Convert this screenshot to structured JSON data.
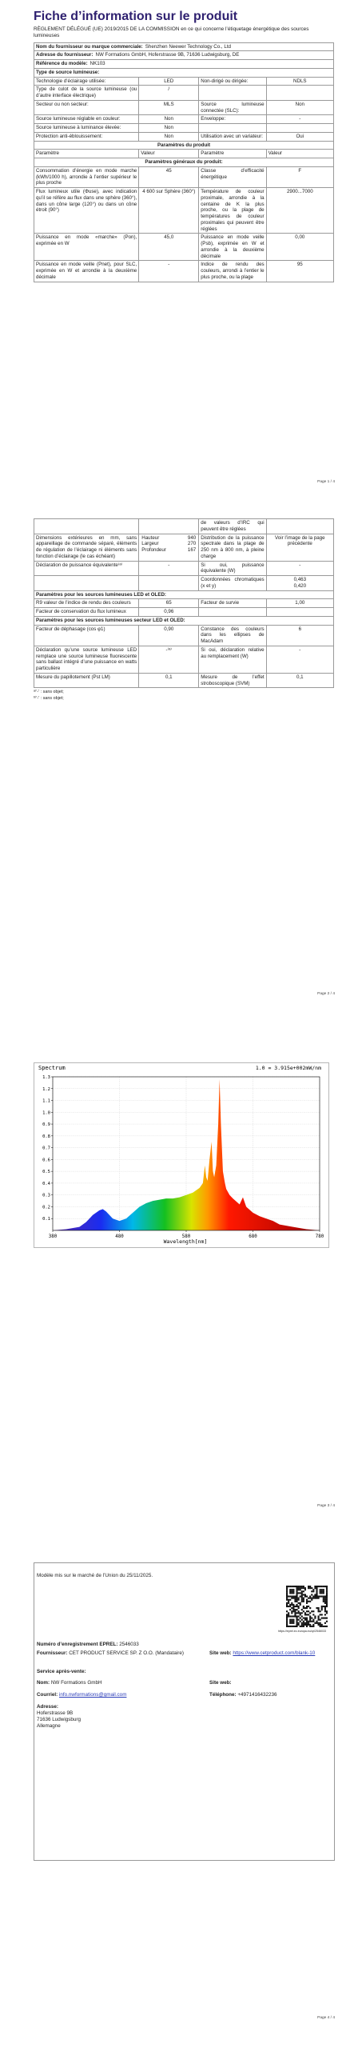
{
  "page1": {
    "title": "Fiche d’information sur le produit",
    "regulation": "RÈGLEMENT DÉLÉGUÉ (UE) 2019/2015 DE LA COMMISSION en ce qui concerne l’étiquetage énergétique des sources lumineuses",
    "blocks": [
      {
        "label": "Nom du fournisseur ou marque commerciale:",
        "value": "Shenzhen Neewer Technology Co., Ltd"
      },
      {
        "label": "Adresse du fournisseur:",
        "value": "NW Formations GmbH, Hoferstrasse 9B, 71636 Ludwigsburg, DE"
      },
      {
        "label": "Référence du modèle:",
        "value": "NK103"
      },
      {
        "heading": "Type de source lumineuse:"
      },
      {
        "cells": [
          "Technologie d’éclairage utilisée:",
          "LED",
          "Non-dirigé ou dirigée:",
          "NDLS"
        ]
      },
      {
        "cells": [
          "Type de culot de la source lumineuse (ou d’autre interface électrique)",
          "/",
          null,
          null
        ]
      },
      {
        "cells": [
          "Secteur ou non secteur:",
          "MLS",
          "Source lumineuse connectée (SLC):",
          "Non"
        ]
      },
      {
        "cells": [
          "Source lumineuse réglable en couleur:",
          "Non",
          "Enveloppe:",
          "-"
        ]
      },
      {
        "cells": [
          "Source lumineuse à luminance élevée:",
          "Non",
          null,
          null
        ]
      },
      {
        "cells": [
          "Protection anti-éblouissement:",
          "Non",
          "Utilisation avec un variateur:",
          "Oui"
        ]
      },
      {
        "section": "Paramètres du produit"
      },
      {
        "columns": [
          "Paramètre",
          "Valeur",
          "Paramètre",
          "Valeur"
        ]
      },
      {
        "section": "Paramètres généraux du produit:"
      },
      {
        "cells": [
          "Consommation d’énergie en mode marche (kWh/1000 h), arrondie à l’entier supérieur le plus proche",
          "45",
          "Classe d’efficacité énergétique",
          "F"
        ]
      },
      {
        "cells": [
          "Flux lumineux utile (Φuse), avec indication qu’il se réfère au flux dans une sphère (360°), dans un cône large (120°) ou dans un cône étroit (90°)",
          "4 600 sur Sphère (360°)",
          "Température de couleur proximale, arrondie à la centaine de K la plus proche, ou la plage de températures de couleur proximales qui peuvent être réglées",
          "2900...7000"
        ]
      },
      {
        "cells": [
          "Puissance en mode «marche» (Pon), exprimée en W",
          "45,0",
          "Puissance en mode veille (Psb), exprimée en W et arrondie à la deuxième décimale",
          "0,00"
        ]
      },
      {
        "cells": [
          "Puissance en mode veille (Pnet), pour SLC, exprimée en W et arrondie à la deuxième décimale",
          "-",
          "Indice de rendu des couleurs, arrondi à l’entier le plus proche, ou la plage",
          "95"
        ]
      }
    ],
    "page_number": "Page 1 / 4"
  },
  "page2": {
    "blocks": [
      {
        "cells": [
          null,
          null,
          "de valeurs d’IRC qui peuvent être réglées",
          null
        ]
      },
      {
        "cells": [
          "Dimensions extérieures en mm, sans appareillage de commande séparé, éléments de régulation de l’éclairage ni éléments sans fonction d’éclairage (le cas échéant)",
          [
            [
              "Hauteur",
              "940"
            ],
            [
              "Largeur",
              "270"
            ],
            [
              "Profondeur",
              "167"
            ]
          ],
          "Distribution de la puissance spectrale dans la plage de 250 nm à 800 nm, à pleine charge",
          "Voir l’image de la page précédente"
        ]
      },
      {
        "cells": [
          "Déclaration de puissance équivalente⁽ᵃ⁾",
          "-",
          "Si oui, puissance équivalente (W)",
          "-"
        ]
      },
      {
        "cells": [
          null,
          null,
          "Coordonnées chromatiques (x et y)",
          [
            "0,463",
            "0,420"
          ]
        ]
      },
      {
        "heading": "Paramètres pour les sources lumineuses LED et OLED:"
      },
      {
        "cells": [
          "R9 valeur de l’indice de rendu des couleurs",
          "65",
          "Facteur de survie",
          "1,00"
        ]
      },
      {
        "cells": [
          "Facteur de conservation du flux lumineux",
          "0,96",
          null,
          null
        ]
      },
      {
        "heading": "Paramètres pour les sources lumineuses secteur LED et OLED:"
      },
      {
        "cells": [
          "Facteur de déphasage (cos φ1)",
          "0,90",
          "Constance des couleurs dans les ellipses de MacAdam",
          "6"
        ]
      },
      {
        "cells": [
          "Déclaration qu’une source lumineuse LED remplace une source lumineuse fluorescente sans ballast intégré d’une puissance en watts particulière",
          "-⁽ᵃ⁾",
          "Si oui, déclaration relative au remplacement (W)",
          "-"
        ]
      },
      {
        "cells": [
          "Mesure du papillotement (Pst LM)",
          "0,1",
          "Mesure de l’effet stroboscopique (SVM)",
          "0,1"
        ]
      }
    ],
    "footnotes": [
      "ᵃ⁾'-' : sans objet;",
      "ᵇ⁾'-' : sans objet;"
    ],
    "page_number": "Page 2 / 4"
  },
  "chart_data": {
    "type": "area",
    "title": "Spectrum",
    "note": "1.0 = 3.915e+002mW/nm",
    "x_label": "Wavelength[nm]",
    "x": [
      380,
      400,
      420,
      430,
      440,
      450,
      455,
      460,
      470,
      480,
      490,
      500,
      510,
      520,
      530,
      540,
      550,
      560,
      570,
      580,
      590,
      600,
      605,
      608,
      610,
      612,
      615,
      618,
      620,
      622,
      625,
      628,
      630,
      632,
      635,
      638,
      640,
      645,
      650,
      660,
      665,
      670,
      680,
      690,
      700,
      710,
      720,
      740,
      760,
      780
    ],
    "values": [
      0,
      0.01,
      0.03,
      0.07,
      0.13,
      0.17,
      0.18,
      0.16,
      0.1,
      0.08,
      0.1,
      0.15,
      0.2,
      0.23,
      0.25,
      0.26,
      0.27,
      0.27,
      0.28,
      0.3,
      0.32,
      0.36,
      0.4,
      0.55,
      0.45,
      0.42,
      0.6,
      0.75,
      0.5,
      0.45,
      0.55,
      0.9,
      1.28,
      0.9,
      0.5,
      0.4,
      0.35,
      0.3,
      0.27,
      0.22,
      0.28,
      0.2,
      0.15,
      0.12,
      0.1,
      0.08,
      0.05,
      0.03,
      0.01,
      0
    ],
    "xlim": [
      380,
      780
    ],
    "ylim": [
      0,
      1.3
    ],
    "xticks": [
      380,
      480,
      580,
      680,
      780
    ],
    "yticks": [
      0.1,
      0.2,
      0.3,
      0.4,
      0.5,
      0.6,
      0.7,
      0.8,
      0.9,
      {
        "value": 1,
        "label": "1.0"
      },
      1.1,
      1.2,
      1.3
    ],
    "grid": true
  },
  "page3": {
    "page_number": "Page 3 / 4"
  },
  "page4": {
    "placed": "Modèle mis sur le marché de l’Union du 25/11/2025.",
    "qr_url": "https://eprel.ec.europa.eu/qr/2546033",
    "eprel_label": "Numéro d’enregistrement EPREL:",
    "eprel": "2546033",
    "supplier_label": "Fournisseur:",
    "supplier": "CET PRODUCT SERVICE SP. Z O.O. (Mandataire)",
    "website_label": "Site web:",
    "website": "https://www.cetproduct.com/blank-10",
    "service_heading": "Service après-vente:",
    "name_label": "Nom:",
    "name": "NW Formations GmbH",
    "service_website_label": "Site web:",
    "email_label": "Courriel:",
    "email": "info.nwformations@gmail.com",
    "phone_label": "Téléphone:",
    "phone": "+4971416432236",
    "address_label": "Adresse:",
    "address": [
      "Hoferstrasse 9B",
      "71636 Ludwigsburg",
      "Allemagne"
    ],
    "page_number": "Page 4 / 4"
  }
}
